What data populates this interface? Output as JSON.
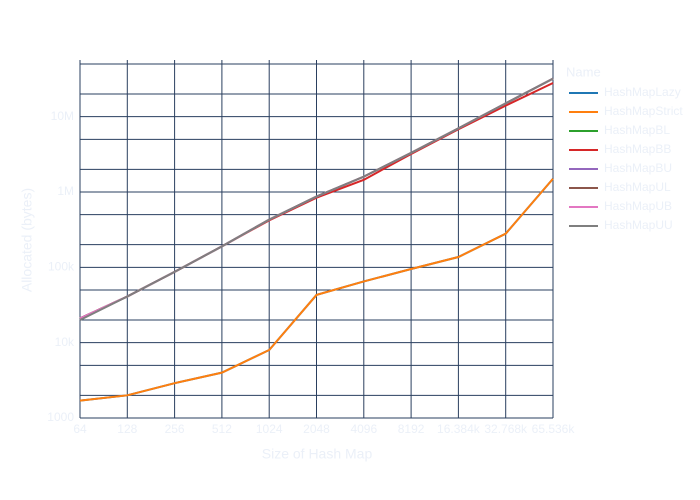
{
  "chart_data": {
    "type": "line",
    "x_label": "Size of Hash Map",
    "y_label": "Allocated (bytes)",
    "legend_title": "Name",
    "categories": [
      "64",
      "128",
      "256",
      "512",
      "1024",
      "2048",
      "4096",
      "8192",
      "16.384k",
      "32.768k",
      "65.536k"
    ],
    "log_y": true,
    "grid": true,
    "legend": "right",
    "ylim": [
      1000,
      50000000
    ],
    "yticks": [
      {
        "value": 1000,
        "label": "1000"
      },
      {
        "value": 10000,
        "label": "10k"
      },
      {
        "value": 100000,
        "label": "100k"
      },
      {
        "value": 1000000,
        "label": "1M"
      },
      {
        "value": 10000000,
        "label": "10M"
      }
    ],
    "minor_yticks": [
      2000,
      5000,
      20000,
      50000,
      200000,
      500000,
      2000000,
      5000000,
      20000000,
      50000000
    ],
    "series": [
      {
        "name": "HashMapLazy",
        "color": "#1f77b4",
        "values": [
          1700,
          2000,
          2900,
          4000,
          8000,
          43000,
          65000,
          95000,
          137000,
          280000,
          1500000
        ]
      },
      {
        "name": "HashMapStrict",
        "color": "#ff7f0e",
        "values": [
          1700,
          2000,
          2900,
          4000,
          8000,
          43000,
          65000,
          95000,
          137000,
          280000,
          1500000
        ]
      },
      {
        "name": "HashMapBL",
        "color": "#2ca02c",
        "values": [
          21000,
          41000,
          87000,
          190000,
          430000,
          870000,
          1600000,
          3300000,
          7000000,
          15000000,
          32000000
        ]
      },
      {
        "name": "HashMapBB",
        "color": "#d62728",
        "values": [
          21000,
          41000,
          87000,
          190000,
          420000,
          840000,
          1450000,
          3200000,
          6800000,
          14000000,
          28000000
        ]
      },
      {
        "name": "HashMapBU",
        "color": "#9467bd",
        "values": [
          21000,
          41000,
          87000,
          190000,
          430000,
          870000,
          1600000,
          3300000,
          7000000,
          15000000,
          32000000
        ]
      },
      {
        "name": "HashMapUL",
        "color": "#8c564b",
        "values": [
          21000,
          41000,
          87000,
          190000,
          430000,
          870000,
          1600000,
          3300000,
          7000000,
          15000000,
          32000000
        ]
      },
      {
        "name": "HashMapUB",
        "color": "#e377c2",
        "values": [
          21000,
          41000,
          87000,
          190000,
          430000,
          870000,
          1600000,
          3300000,
          7000000,
          15000000,
          32000000
        ]
      },
      {
        "name": "HashMapUU",
        "color": "#7f7f7f",
        "values": [
          20000,
          41000,
          87000,
          190000,
          430000,
          870000,
          1600000,
          3300000,
          7000000,
          15000000,
          32000000
        ]
      }
    ]
  }
}
